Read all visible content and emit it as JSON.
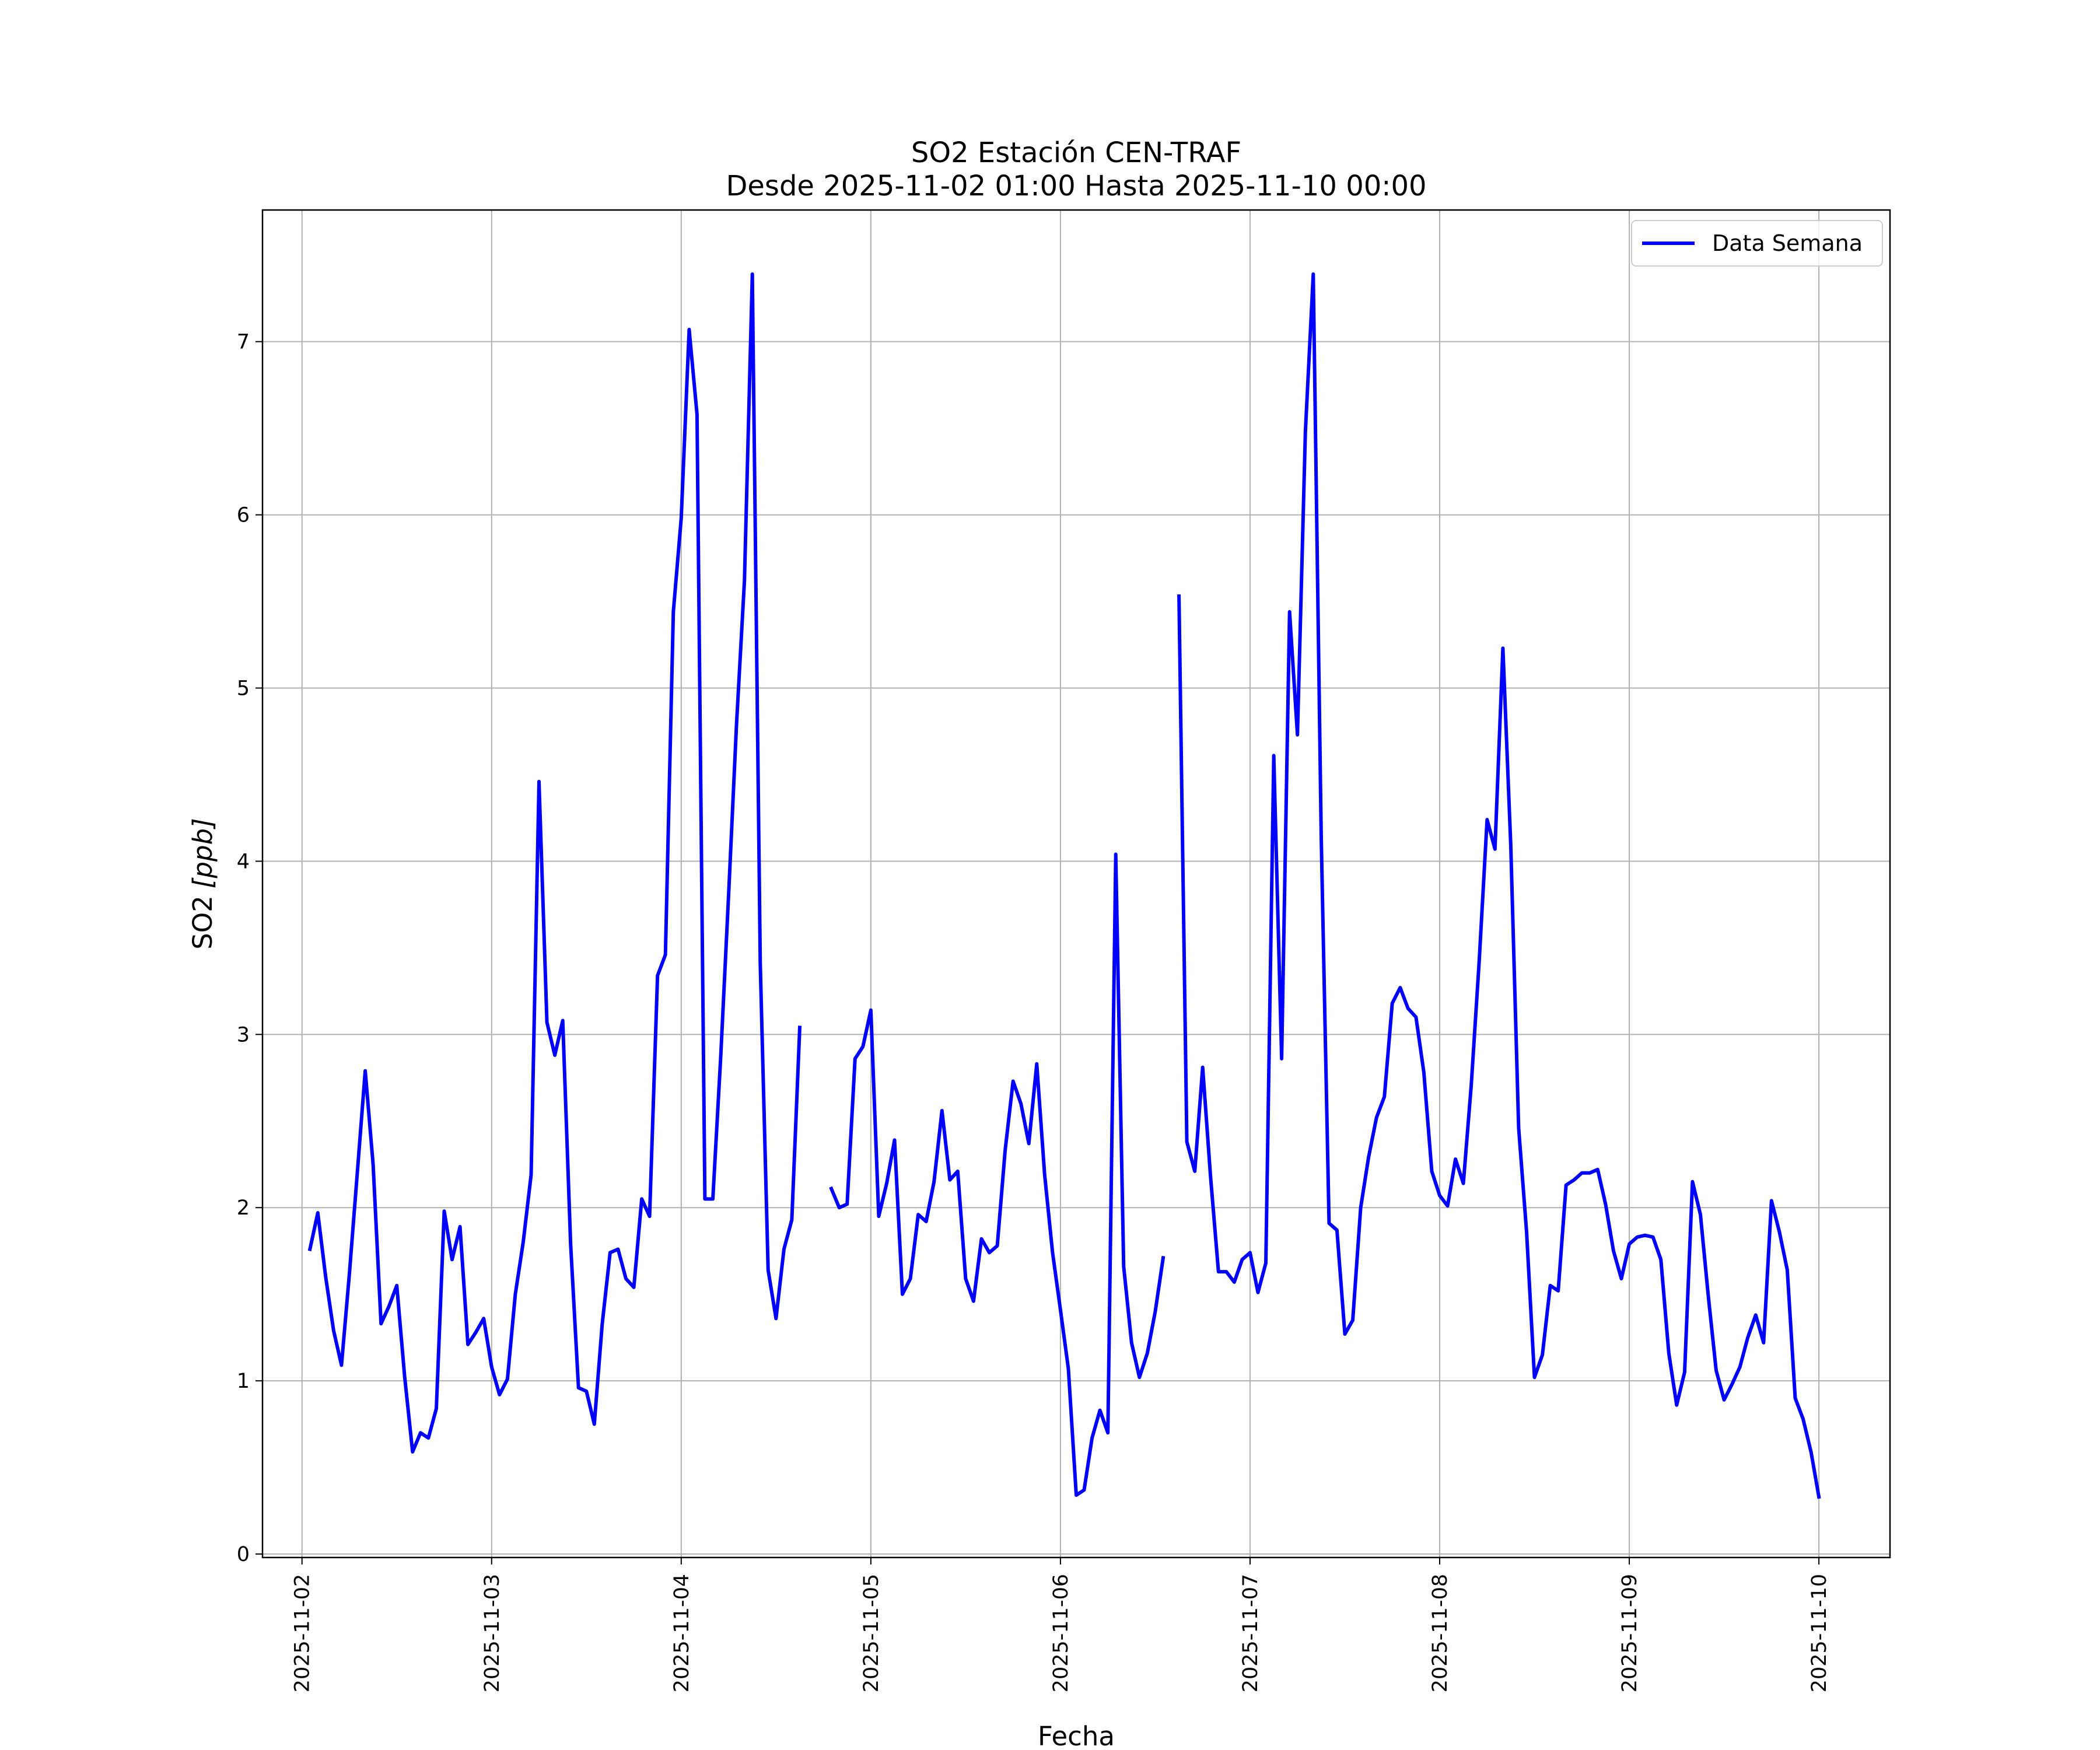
{
  "chart_data": {
    "type": "line",
    "title": "SO2 Estación CEN-TRAF",
    "subtitle": "Desde 2025-11-02 01:00 Hasta 2025-11-10 00:00",
    "xlabel": "Fecha",
    "ylabel_main": "SO2",
    "ylabel_unit": "[ppb]",
    "x_ticks": [
      "2025-11-02",
      "2025-11-03",
      "2025-11-04",
      "2025-11-05",
      "2025-11-06",
      "2025-11-07",
      "2025-11-08",
      "2025-11-09",
      "2025-11-10"
    ],
    "y_ticks": [
      0,
      1,
      2,
      3,
      4,
      5,
      6,
      7
    ],
    "xlim": [
      "2025-11-01 19:00",
      "2025-11-10 09:00"
    ],
    "ylim": [
      -0.02,
      7.76
    ],
    "grid": true,
    "legend_position": "top-right",
    "series": [
      {
        "name": "Data Semana",
        "color": "#0000ff",
        "points": [
          [
            "2025-11-02 01:00",
            1.76
          ],
          [
            "2025-11-02 02:00",
            1.97
          ],
          [
            "2025-11-02 03:00",
            1.6
          ],
          [
            "2025-11-02 04:00",
            1.29
          ],
          [
            "2025-11-02 05:00",
            1.09
          ],
          [
            "2025-11-02 06:00",
            1.62
          ],
          [
            "2025-11-02 07:00",
            2.2
          ],
          [
            "2025-11-02 08:00",
            2.79
          ],
          [
            "2025-11-02 09:00",
            2.25
          ],
          [
            "2025-11-02 10:00",
            1.33
          ],
          [
            "2025-11-02 11:00",
            1.43
          ],
          [
            "2025-11-02 12:00",
            1.55
          ],
          [
            "2025-11-02 13:00",
            1.02
          ],
          [
            "2025-11-02 14:00",
            0.59
          ],
          [
            "2025-11-02 15:00",
            0.7
          ],
          [
            "2025-11-02 16:00",
            0.67
          ],
          [
            "2025-11-02 17:00",
            0.84
          ],
          [
            "2025-11-02 18:00",
            1.98
          ],
          [
            "2025-11-02 19:00",
            1.7
          ],
          [
            "2025-11-02 20:00",
            1.89
          ],
          [
            "2025-11-02 21:00",
            1.21
          ],
          [
            "2025-11-02 22:00",
            1.28
          ],
          [
            "2025-11-02 23:00",
            1.36
          ],
          [
            "2025-11-03 00:00",
            1.08
          ],
          [
            "2025-11-03 01:00",
            0.92
          ],
          [
            "2025-11-03 02:00",
            1.01
          ],
          [
            "2025-11-03 03:00",
            1.5
          ],
          [
            "2025-11-03 04:00",
            1.8
          ],
          [
            "2025-11-03 05:00",
            2.19
          ],
          [
            "2025-11-03 06:00",
            4.46
          ],
          [
            "2025-11-03 07:00",
            3.07
          ],
          [
            "2025-11-03 08:00",
            2.88
          ],
          [
            "2025-11-03 09:00",
            3.08
          ],
          [
            "2025-11-03 10:00",
            1.79
          ],
          [
            "2025-11-03 11:00",
            0.96
          ],
          [
            "2025-11-03 12:00",
            0.94
          ],
          [
            "2025-11-03 13:00",
            0.75
          ],
          [
            "2025-11-03 14:00",
            1.33
          ],
          [
            "2025-11-03 15:00",
            1.74
          ],
          [
            "2025-11-03 16:00",
            1.76
          ],
          [
            "2025-11-03 17:00",
            1.59
          ],
          [
            "2025-11-03 18:00",
            1.54
          ],
          [
            "2025-11-03 19:00",
            2.05
          ],
          [
            "2025-11-03 20:00",
            1.95
          ],
          [
            "2025-11-03 21:00",
            3.34
          ],
          [
            "2025-11-03 22:00",
            3.46
          ],
          [
            "2025-11-03 23:00",
            5.44
          ],
          [
            "2025-11-04 00:00",
            5.98
          ],
          [
            "2025-11-04 01:00",
            7.07
          ],
          [
            "2025-11-04 02:00",
            6.58
          ],
          [
            "2025-11-04 03:00",
            2.05
          ],
          [
            "2025-11-04 04:00",
            2.05
          ],
          [
            "2025-11-04 05:00",
            2.87
          ],
          [
            "2025-11-04 06:00",
            3.81
          ],
          [
            "2025-11-04 07:00",
            4.79
          ],
          [
            "2025-11-04 08:00",
            5.62
          ],
          [
            "2025-11-04 09:00",
            7.39
          ],
          [
            "2025-11-04 10:00",
            3.41
          ],
          [
            "2025-11-04 11:00",
            1.64
          ],
          [
            "2025-11-04 12:00",
            1.36
          ],
          [
            "2025-11-04 13:00",
            1.76
          ],
          [
            "2025-11-04 14:00",
            1.93
          ],
          [
            "2025-11-04 15:00",
            3.04
          ],
          [
            "2025-11-04 16:00",
            null
          ],
          [
            "2025-11-04 17:00",
            null
          ],
          [
            "2025-11-04 18:00",
            null
          ],
          [
            "2025-11-04 19:00",
            2.11
          ],
          [
            "2025-11-04 20:00",
            2.0
          ],
          [
            "2025-11-04 21:00",
            2.02
          ],
          [
            "2025-11-04 22:00",
            2.86
          ],
          [
            "2025-11-04 23:00",
            2.93
          ],
          [
            "2025-11-05 00:00",
            3.14
          ],
          [
            "2025-11-05 01:00",
            1.95
          ],
          [
            "2025-11-05 02:00",
            2.14
          ],
          [
            "2025-11-05 03:00",
            2.39
          ],
          [
            "2025-11-05 04:00",
            1.5
          ],
          [
            "2025-11-05 05:00",
            1.59
          ],
          [
            "2025-11-05 06:00",
            1.96
          ],
          [
            "2025-11-05 07:00",
            1.92
          ],
          [
            "2025-11-05 08:00",
            2.15
          ],
          [
            "2025-11-05 09:00",
            2.56
          ],
          [
            "2025-11-05 10:00",
            2.16
          ],
          [
            "2025-11-05 11:00",
            2.21
          ],
          [
            "2025-11-05 12:00",
            1.59
          ],
          [
            "2025-11-05 13:00",
            1.46
          ],
          [
            "2025-11-05 14:00",
            1.82
          ],
          [
            "2025-11-05 15:00",
            1.74
          ],
          [
            "2025-11-05 16:00",
            1.78
          ],
          [
            "2025-11-05 17:00",
            2.33
          ],
          [
            "2025-11-05 18:00",
            2.73
          ],
          [
            "2025-11-05 19:00",
            2.6
          ],
          [
            "2025-11-05 20:00",
            2.37
          ],
          [
            "2025-11-05 21:00",
            2.83
          ],
          [
            "2025-11-05 22:00",
            2.19
          ],
          [
            "2025-11-05 23:00",
            1.74
          ],
          [
            "2025-11-06 00:00",
            1.41
          ],
          [
            "2025-11-06 01:00",
            1.07
          ],
          [
            "2025-11-06 02:00",
            0.34
          ],
          [
            "2025-11-06 03:00",
            0.37
          ],
          [
            "2025-11-06 04:00",
            0.67
          ],
          [
            "2025-11-06 05:00",
            0.83
          ],
          [
            "2025-11-06 06:00",
            0.7
          ],
          [
            "2025-11-06 07:00",
            4.04
          ],
          [
            "2025-11-06 08:00",
            1.66
          ],
          [
            "2025-11-06 09:00",
            1.22
          ],
          [
            "2025-11-06 10:00",
            1.02
          ],
          [
            "2025-11-06 11:00",
            1.16
          ],
          [
            "2025-11-06 12:00",
            1.4
          ],
          [
            "2025-11-06 13:00",
            1.71
          ],
          [
            "2025-11-06 14:00",
            null
          ],
          [
            "2025-11-06 15:00",
            5.53
          ],
          [
            "2025-11-06 16:00",
            2.38
          ],
          [
            "2025-11-06 17:00",
            2.21
          ],
          [
            "2025-11-06 18:00",
            2.81
          ],
          [
            "2025-11-06 19:00",
            2.18
          ],
          [
            "2025-11-06 20:00",
            1.63
          ],
          [
            "2025-11-06 21:00",
            1.63
          ],
          [
            "2025-11-06 22:00",
            1.57
          ],
          [
            "2025-11-06 23:00",
            1.7
          ],
          [
            "2025-11-07 00:00",
            1.74
          ],
          [
            "2025-11-07 01:00",
            1.51
          ],
          [
            "2025-11-07 02:00",
            1.68
          ],
          [
            "2025-11-07 03:00",
            4.61
          ],
          [
            "2025-11-07 04:00",
            2.86
          ],
          [
            "2025-11-07 05:00",
            5.44
          ],
          [
            "2025-11-07 06:00",
            4.73
          ],
          [
            "2025-11-07 07:00",
            6.48
          ],
          [
            "2025-11-07 08:00",
            7.39
          ],
          [
            "2025-11-07 09:00",
            4.15
          ],
          [
            "2025-11-07 10:00",
            1.91
          ],
          [
            "2025-11-07 11:00",
            1.87
          ],
          [
            "2025-11-07 12:00",
            1.27
          ],
          [
            "2025-11-07 13:00",
            1.35
          ],
          [
            "2025-11-07 14:00",
            2.0
          ],
          [
            "2025-11-07 15:00",
            2.29
          ],
          [
            "2025-11-07 16:00",
            2.52
          ],
          [
            "2025-11-07 17:00",
            2.64
          ],
          [
            "2025-11-07 18:00",
            3.18
          ],
          [
            "2025-11-07 19:00",
            3.27
          ],
          [
            "2025-11-07 20:00",
            3.15
          ],
          [
            "2025-11-07 21:00",
            3.1
          ],
          [
            "2025-11-07 22:00",
            2.78
          ],
          [
            "2025-11-07 23:00",
            2.21
          ],
          [
            "2025-11-08 00:00",
            2.07
          ],
          [
            "2025-11-08 01:00",
            2.01
          ],
          [
            "2025-11-08 02:00",
            2.28
          ],
          [
            "2025-11-08 03:00",
            2.14
          ],
          [
            "2025-11-08 04:00",
            2.71
          ],
          [
            "2025-11-08 05:00",
            3.42
          ],
          [
            "2025-11-08 06:00",
            4.24
          ],
          [
            "2025-11-08 07:00",
            4.07
          ],
          [
            "2025-11-08 08:00",
            5.23
          ],
          [
            "2025-11-08 09:00",
            4.09
          ],
          [
            "2025-11-08 10:00",
            2.46
          ],
          [
            "2025-11-08 11:00",
            1.86
          ],
          [
            "2025-11-08 12:00",
            1.02
          ],
          [
            "2025-11-08 13:00",
            1.15
          ],
          [
            "2025-11-08 14:00",
            1.55
          ],
          [
            "2025-11-08 15:00",
            1.52
          ],
          [
            "2025-11-08 16:00",
            2.13
          ],
          [
            "2025-11-08 17:00",
            2.16
          ],
          [
            "2025-11-08 18:00",
            2.2
          ],
          [
            "2025-11-08 19:00",
            2.2
          ],
          [
            "2025-11-08 20:00",
            2.22
          ],
          [
            "2025-11-08 21:00",
            2.02
          ],
          [
            "2025-11-08 22:00",
            1.75
          ],
          [
            "2025-11-08 23:00",
            1.59
          ],
          [
            "2025-11-09 00:00",
            1.79
          ],
          [
            "2025-11-09 01:00",
            1.83
          ],
          [
            "2025-11-09 02:00",
            1.84
          ],
          [
            "2025-11-09 03:00",
            1.83
          ],
          [
            "2025-11-09 04:00",
            1.7
          ],
          [
            "2025-11-09 05:00",
            1.16
          ],
          [
            "2025-11-09 06:00",
            0.86
          ],
          [
            "2025-11-09 07:00",
            1.05
          ],
          [
            "2025-11-09 08:00",
            2.15
          ],
          [
            "2025-11-09 09:00",
            1.96
          ],
          [
            "2025-11-09 10:00",
            1.49
          ],
          [
            "2025-11-09 11:00",
            1.06
          ],
          [
            "2025-11-09 12:00",
            0.89
          ],
          [
            "2025-11-09 13:00",
            0.98
          ],
          [
            "2025-11-09 14:00",
            1.08
          ],
          [
            "2025-11-09 15:00",
            1.25
          ],
          [
            "2025-11-09 16:00",
            1.38
          ],
          [
            "2025-11-09 17:00",
            1.22
          ],
          [
            "2025-11-09 18:00",
            2.04
          ],
          [
            "2025-11-09 19:00",
            1.86
          ],
          [
            "2025-11-09 20:00",
            1.64
          ],
          [
            "2025-11-09 21:00",
            0.9
          ],
          [
            "2025-11-09 22:00",
            0.78
          ],
          [
            "2025-11-09 23:00",
            0.59
          ],
          [
            "2025-11-10 00:00",
            0.33
          ]
        ]
      }
    ]
  }
}
